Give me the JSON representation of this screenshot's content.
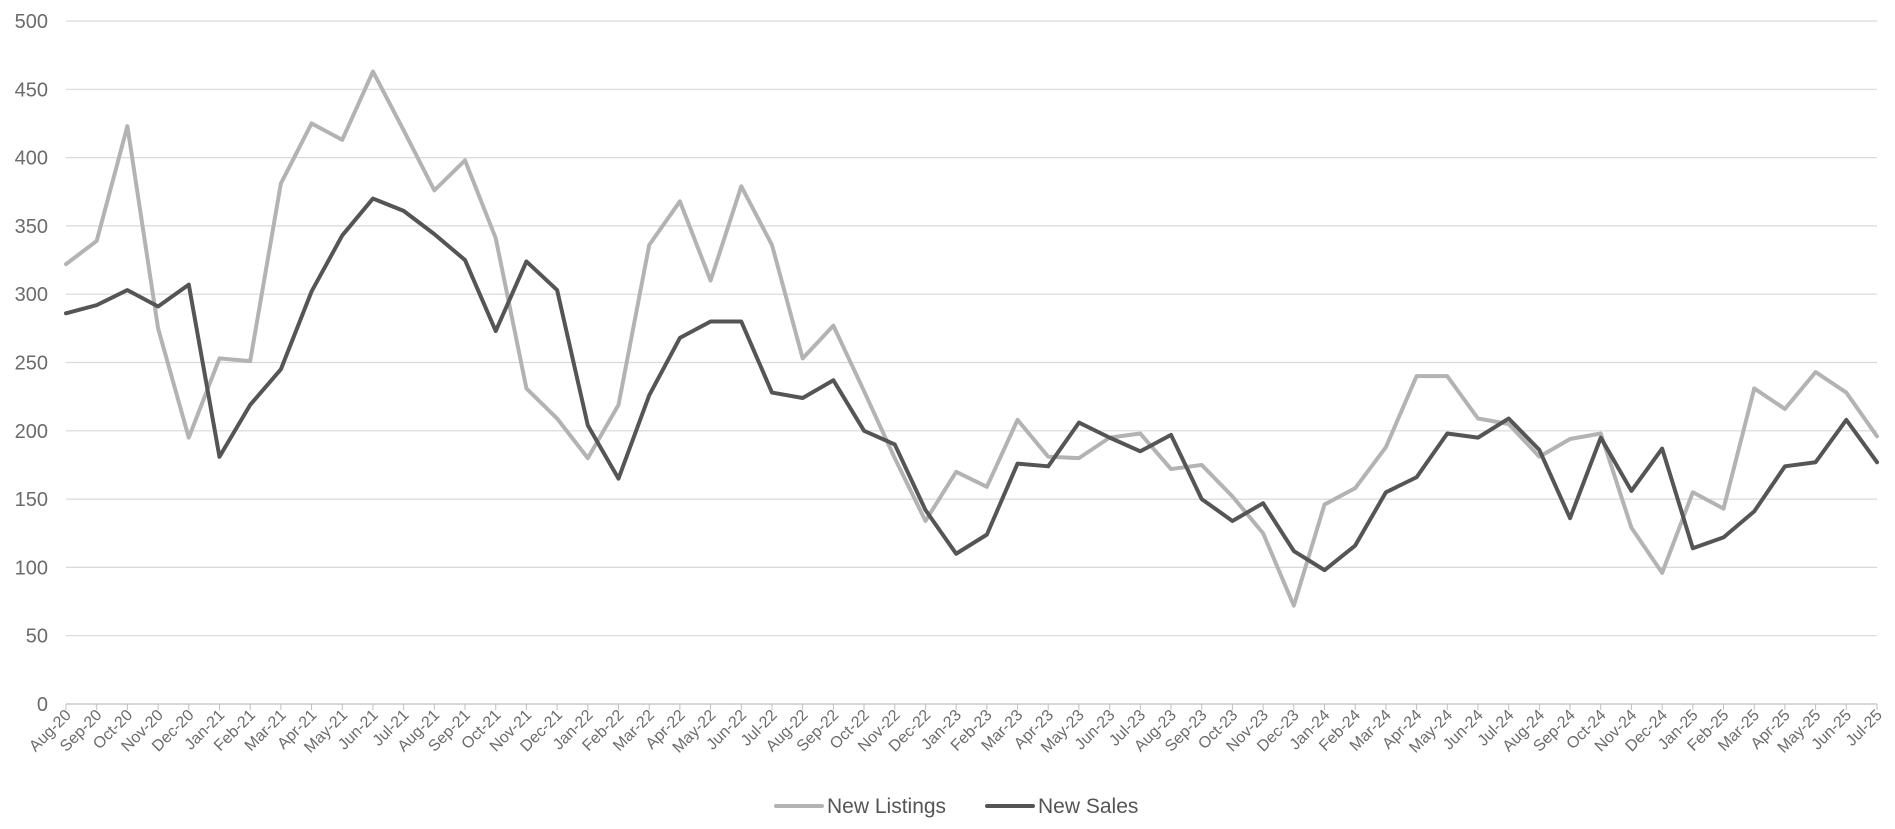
{
  "chart_data": {
    "type": "line",
    "title": "",
    "xlabel": "",
    "ylabel": "",
    "ylim": [
      0,
      500
    ],
    "yticks": [
      0,
      50,
      100,
      150,
      200,
      250,
      300,
      350,
      400,
      450,
      500
    ],
    "grid": "horizontal",
    "legend_position": "bottom-center",
    "categories": [
      "Aug-20",
      "Sep-20",
      "Oct-20",
      "Nov-20",
      "Dec-20",
      "Jan-21",
      "Feb-21",
      "Mar-21",
      "Apr-21",
      "May-21",
      "Jun-21",
      "Jul-21",
      "Aug-21",
      "Sep-21",
      "Oct-21",
      "Nov-21",
      "Dec-21",
      "Jan-22",
      "Feb-22",
      "Mar-22",
      "Apr-22",
      "May-22",
      "Jun-22",
      "Jul-22",
      "Aug-22",
      "Sep-22",
      "Oct-22",
      "Nov-22",
      "Dec-22",
      "Jan-23",
      "Feb-23",
      "Mar-23",
      "Apr-23",
      "May-23",
      "Jun-23",
      "Jul-23",
      "Aug-23",
      "Sep-23",
      "Oct-23",
      "Nov-23",
      "Dec-23",
      "Jan-24",
      "Feb-24",
      "Mar-24",
      "Apr-24",
      "May-24",
      "Jun-24",
      "Jul-24",
      "Aug-24",
      "Sep-24",
      "Oct-24",
      "Nov-24",
      "Dec-24",
      "Jan-25",
      "Feb-25",
      "Mar-25",
      "Apr-25",
      "May-25",
      "Jun-25",
      "Jul-25"
    ],
    "series": [
      {
        "name": "New Listings",
        "color": "#b3b3b3",
        "values": [
          322,
          339,
          423,
          275,
          195,
          253,
          251,
          381,
          425,
          413,
          463,
          420,
          376,
          398,
          341,
          231,
          209,
          180,
          219,
          336,
          368,
          310,
          379,
          336,
          253,
          277,
          229,
          180,
          134,
          170,
          159,
          208,
          181,
          180,
          195,
          198,
          172,
          175,
          152,
          125,
          72,
          146,
          158,
          188,
          240,
          240,
          209,
          205,
          181,
          194,
          198,
          129,
          96,
          155,
          143,
          231,
          216,
          243,
          228,
          196
        ]
      },
      {
        "name": "New Sales",
        "color": "#555555",
        "values": [
          286,
          292,
          303,
          291,
          307,
          181,
          219,
          245,
          302,
          343,
          370,
          361,
          344,
          325,
          273,
          324,
          303,
          204,
          165,
          226,
          268,
          280,
          280,
          228,
          224,
          237,
          200,
          190,
          142,
          110,
          124,
          176,
          174,
          206,
          195,
          185,
          197,
          150,
          134,
          147,
          112,
          98,
          116,
          155,
          166,
          198,
          195,
          209,
          186,
          136,
          195,
          156,
          187,
          114,
          122,
          141,
          174,
          177,
          208,
          177
        ]
      }
    ]
  }
}
